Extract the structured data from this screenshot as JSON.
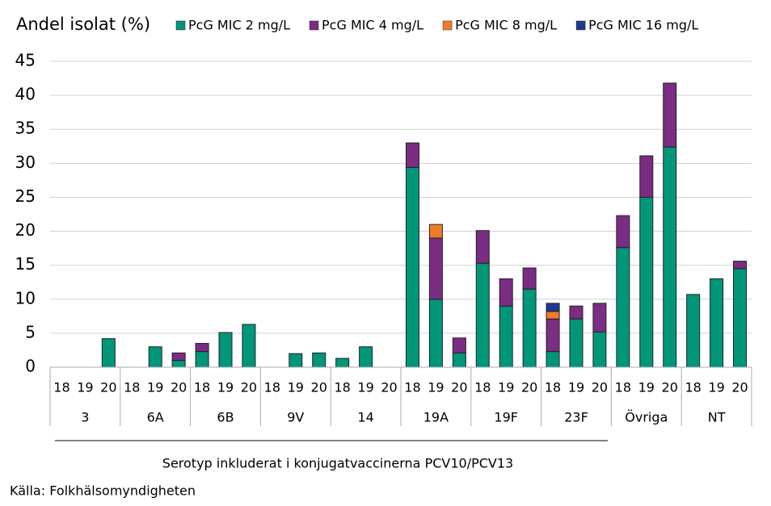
{
  "chart_data": {
    "type": "stacked_bar",
    "y_label": "Andel isolat (%)",
    "categories": [
      "18",
      "19",
      "20",
      "18",
      "19",
      "20",
      "18",
      "19",
      "20",
      "18",
      "19",
      "20",
      "18",
      "19",
      "20",
      "18",
      "19",
      "20",
      "18",
      "19",
      "20",
      "18",
      "19",
      "20",
      "18",
      "19",
      "20",
      "18",
      "19",
      "20"
    ],
    "groups": [
      "3",
      "6A",
      "6B",
      "9V",
      "14",
      "19A",
      "19F",
      "23F",
      "Övriga",
      "NT"
    ],
    "series": [
      {
        "name": "PcG MIC 2 mg/L",
        "color": "#00967a",
        "values": [
          0,
          0,
          4.2,
          0,
          3.0,
          1.0,
          2.3,
          5.1,
          6.3,
          0,
          2.0,
          2.1,
          1.3,
          3.0,
          0,
          29.4,
          10.0,
          2.1,
          15.3,
          9.0,
          11.5,
          2.3,
          7.1,
          5.2,
          17.6,
          25.0,
          32.4,
          10.7,
          13.0,
          14.5
        ]
      },
      {
        "name": "PcG MIC 4 mg/L",
        "color": "#7b2c83",
        "values": [
          0,
          0,
          0,
          0,
          0,
          1.1,
          1.2,
          0,
          0,
          0,
          0,
          0,
          0,
          0,
          0,
          3.6,
          9.0,
          2.2,
          4.8,
          4.0,
          3.1,
          4.8,
          1.9,
          4.2,
          4.7,
          6.1,
          9.4,
          0,
          0,
          1.1
        ]
      },
      {
        "name": "PcG MIC 8 mg/L",
        "color": "#f07c2a",
        "values": [
          0,
          0,
          0,
          0,
          0,
          0,
          0,
          0,
          0,
          0,
          0,
          0,
          0,
          0,
          0,
          0,
          2.0,
          0,
          0,
          0,
          0,
          1.1,
          0,
          0,
          0,
          0,
          0,
          0,
          0,
          0
        ]
      },
      {
        "name": "PcG MIC 16 mg/L",
        "color": "#1f3a93",
        "values": [
          0,
          0,
          0,
          0,
          0,
          0,
          0,
          0,
          0,
          0,
          0,
          0,
          0,
          0,
          0,
          0,
          0,
          0,
          0,
          0,
          0,
          1.2,
          0,
          0,
          0,
          0,
          0,
          0,
          0,
          0
        ]
      }
    ],
    "ylim": [
      0,
      45
    ],
    "yticks": [
      0,
      5,
      10,
      15,
      20,
      25,
      30,
      35,
      40,
      45
    ],
    "grid": true,
    "note": "Serotyp inkluderat i konjugatvaccinerna PCV10/PCV13",
    "source": "Källa: Folkhälsomyndigheten"
  }
}
